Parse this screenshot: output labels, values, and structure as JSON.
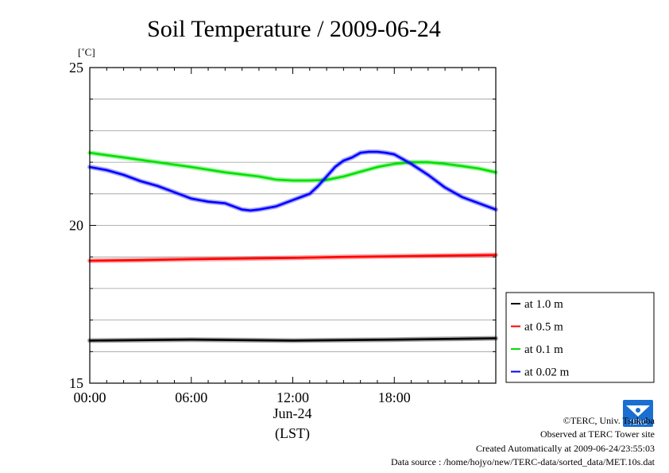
{
  "chart_data": {
    "type": "line",
    "title": "Soil Temperature / 2009-06-24",
    "ylabel": "[˚C]",
    "xlabel": "(LST)",
    "date_label": "Jun-24",
    "xlim": [
      0,
      24
    ],
    "ylim": [
      15,
      25
    ],
    "x_ticks": [
      {
        "value": 0,
        "label": "00:00"
      },
      {
        "value": 6,
        "label": "06:00"
      },
      {
        "value": 12,
        "label": "12:00"
      },
      {
        "value": 18,
        "label": "18:00"
      }
    ],
    "y_ticks": [
      {
        "value": 15,
        "label": "15"
      },
      {
        "value": 20,
        "label": "20"
      },
      {
        "value": 25,
        "label": "25"
      }
    ],
    "minor_y_step": 1,
    "grid": true,
    "legend_position": "right-bottom",
    "series": [
      {
        "name": "at 1.0 m",
        "color": "#000000",
        "x": [
          0,
          6,
          12,
          18,
          24
        ],
        "y": [
          16.35,
          16.38,
          16.35,
          16.38,
          16.42
        ]
      },
      {
        "name": "at 0.5 m",
        "color": "#ff0000",
        "x": [
          0,
          3,
          6,
          9,
          12,
          15,
          18,
          21,
          24
        ],
        "y": [
          18.88,
          18.9,
          18.93,
          18.95,
          18.97,
          19.0,
          19.02,
          19.04,
          19.06
        ]
      },
      {
        "name": "at 0.1 m",
        "color": "#00e000",
        "x": [
          0,
          2,
          4,
          6,
          8,
          10,
          11,
          12,
          13,
          14,
          15,
          16,
          17,
          18,
          19,
          20,
          21,
          22,
          23,
          24
        ],
        "y": [
          22.3,
          22.15,
          22.0,
          21.85,
          21.68,
          21.55,
          21.45,
          21.42,
          21.42,
          21.44,
          21.55,
          21.7,
          21.85,
          21.95,
          22.0,
          22.0,
          21.95,
          21.88,
          21.8,
          21.68
        ]
      },
      {
        "name": "at 0.02 m",
        "color": "#0000ff",
        "x": [
          0,
          1,
          2,
          3,
          4,
          5,
          6,
          7,
          8,
          9,
          9.5,
          10,
          11,
          12,
          13,
          13.5,
          14,
          14.5,
          15,
          15.5,
          16,
          16.5,
          17,
          17.5,
          18,
          18.5,
          19,
          20,
          21,
          22,
          23,
          24
        ],
        "y": [
          21.85,
          21.75,
          21.6,
          21.4,
          21.25,
          21.05,
          20.85,
          20.75,
          20.7,
          20.5,
          20.47,
          20.5,
          20.6,
          20.8,
          21.0,
          21.25,
          21.55,
          21.85,
          22.05,
          22.15,
          22.3,
          22.33,
          22.33,
          22.3,
          22.25,
          22.1,
          21.95,
          21.6,
          21.2,
          20.9,
          20.7,
          20.5
        ]
      }
    ]
  },
  "footer": {
    "copyright": "©TERC, Univ. Tsukuba",
    "observed": "Observed at TERC Tower site",
    "created": "Created Automatically at 2009-06-24/23:55:03",
    "source": "Data source : /home/hojyo/new/TERC-data/sorted_data/MET.10s.dat",
    "logo_text": "TERC"
  }
}
